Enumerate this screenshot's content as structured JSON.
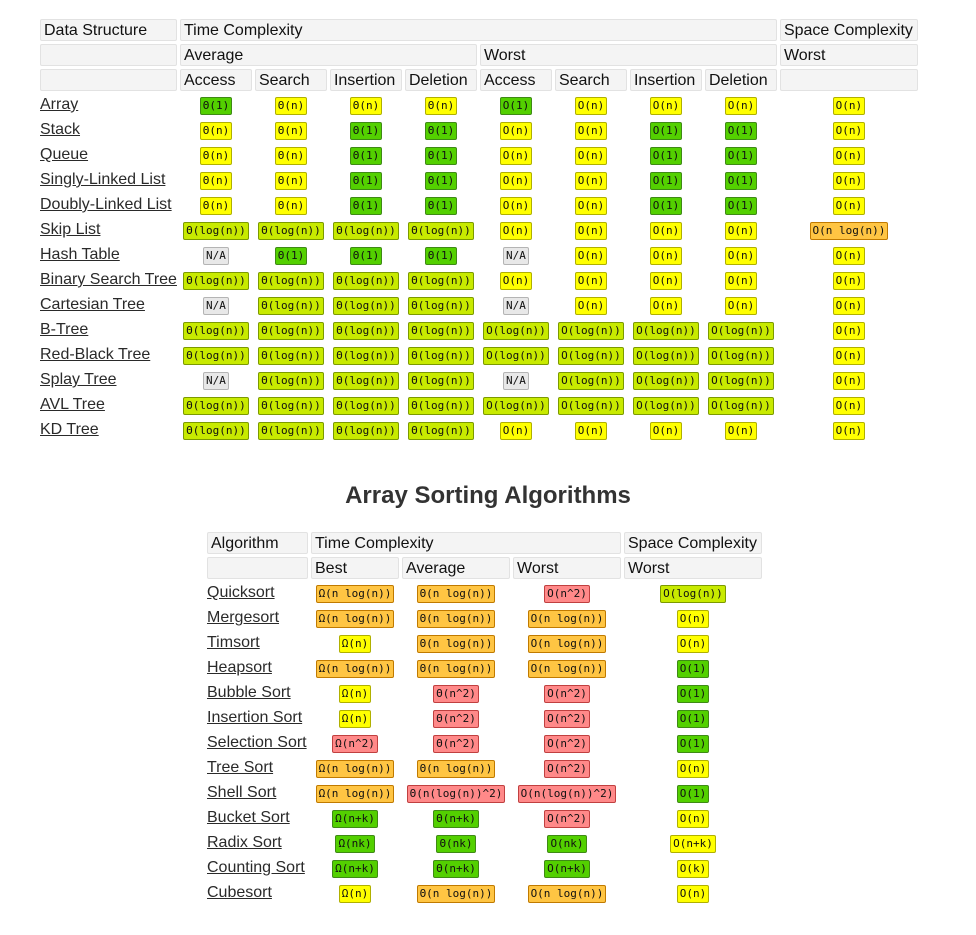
{
  "ds": {
    "headers": {
      "data_structure": "Data Structure",
      "time_complexity": "Time Complexity",
      "space_complexity": "Space Complexity",
      "average": "Average",
      "worst": "Worst",
      "space_worst": "Worst",
      "access": "Access",
      "search": "Search",
      "insertion": "Insertion",
      "deletion": "Deletion"
    },
    "rows": [
      {
        "name": "Array",
        "cells": [
          [
            "Θ(1)",
            "g"
          ],
          [
            "Θ(n)",
            "y"
          ],
          [
            "Θ(n)",
            "y"
          ],
          [
            "Θ(n)",
            "y"
          ],
          [
            "O(1)",
            "g"
          ],
          [
            "O(n)",
            "y"
          ],
          [
            "O(n)",
            "y"
          ],
          [
            "O(n)",
            "y"
          ],
          [
            "O(n)",
            "y"
          ]
        ]
      },
      {
        "name": "Stack",
        "cells": [
          [
            "Θ(n)",
            "y"
          ],
          [
            "Θ(n)",
            "y"
          ],
          [
            "Θ(1)",
            "g"
          ],
          [
            "Θ(1)",
            "g"
          ],
          [
            "O(n)",
            "y"
          ],
          [
            "O(n)",
            "y"
          ],
          [
            "O(1)",
            "g"
          ],
          [
            "O(1)",
            "g"
          ],
          [
            "O(n)",
            "y"
          ]
        ]
      },
      {
        "name": "Queue",
        "cells": [
          [
            "Θ(n)",
            "y"
          ],
          [
            "Θ(n)",
            "y"
          ],
          [
            "Θ(1)",
            "g"
          ],
          [
            "Θ(1)",
            "g"
          ],
          [
            "O(n)",
            "y"
          ],
          [
            "O(n)",
            "y"
          ],
          [
            "O(1)",
            "g"
          ],
          [
            "O(1)",
            "g"
          ],
          [
            "O(n)",
            "y"
          ]
        ]
      },
      {
        "name": "Singly-Linked List",
        "cells": [
          [
            "Θ(n)",
            "y"
          ],
          [
            "Θ(n)",
            "y"
          ],
          [
            "Θ(1)",
            "g"
          ],
          [
            "Θ(1)",
            "g"
          ],
          [
            "O(n)",
            "y"
          ],
          [
            "O(n)",
            "y"
          ],
          [
            "O(1)",
            "g"
          ],
          [
            "O(1)",
            "g"
          ],
          [
            "O(n)",
            "y"
          ]
        ]
      },
      {
        "name": "Doubly-Linked List",
        "cells": [
          [
            "Θ(n)",
            "y"
          ],
          [
            "Θ(n)",
            "y"
          ],
          [
            "Θ(1)",
            "g"
          ],
          [
            "Θ(1)",
            "g"
          ],
          [
            "O(n)",
            "y"
          ],
          [
            "O(n)",
            "y"
          ],
          [
            "O(1)",
            "g"
          ],
          [
            "O(1)",
            "g"
          ],
          [
            "O(n)",
            "y"
          ]
        ]
      },
      {
        "name": "Skip List",
        "cells": [
          [
            "Θ(log(n))",
            "l"
          ],
          [
            "Θ(log(n))",
            "l"
          ],
          [
            "Θ(log(n))",
            "l"
          ],
          [
            "Θ(log(n))",
            "l"
          ],
          [
            "O(n)",
            "y"
          ],
          [
            "O(n)",
            "y"
          ],
          [
            "O(n)",
            "y"
          ],
          [
            "O(n)",
            "y"
          ],
          [
            "O(n log(n))",
            "o"
          ]
        ]
      },
      {
        "name": "Hash Table",
        "cells": [
          [
            "N/A",
            "x"
          ],
          [
            "Θ(1)",
            "g"
          ],
          [
            "Θ(1)",
            "g"
          ],
          [
            "Θ(1)",
            "g"
          ],
          [
            "N/A",
            "x"
          ],
          [
            "O(n)",
            "y"
          ],
          [
            "O(n)",
            "y"
          ],
          [
            "O(n)",
            "y"
          ],
          [
            "O(n)",
            "y"
          ]
        ]
      },
      {
        "name": "Binary Search Tree",
        "cells": [
          [
            "Θ(log(n))",
            "l"
          ],
          [
            "Θ(log(n))",
            "l"
          ],
          [
            "Θ(log(n))",
            "l"
          ],
          [
            "Θ(log(n))",
            "l"
          ],
          [
            "O(n)",
            "y"
          ],
          [
            "O(n)",
            "y"
          ],
          [
            "O(n)",
            "y"
          ],
          [
            "O(n)",
            "y"
          ],
          [
            "O(n)",
            "y"
          ]
        ]
      },
      {
        "name": "Cartesian Tree",
        "cells": [
          [
            "N/A",
            "x"
          ],
          [
            "Θ(log(n))",
            "l"
          ],
          [
            "Θ(log(n))",
            "l"
          ],
          [
            "Θ(log(n))",
            "l"
          ],
          [
            "N/A",
            "x"
          ],
          [
            "O(n)",
            "y"
          ],
          [
            "O(n)",
            "y"
          ],
          [
            "O(n)",
            "y"
          ],
          [
            "O(n)",
            "y"
          ]
        ]
      },
      {
        "name": "B-Tree",
        "cells": [
          [
            "Θ(log(n))",
            "l"
          ],
          [
            "Θ(log(n))",
            "l"
          ],
          [
            "Θ(log(n))",
            "l"
          ],
          [
            "Θ(log(n))",
            "l"
          ],
          [
            "O(log(n))",
            "l"
          ],
          [
            "O(log(n))",
            "l"
          ],
          [
            "O(log(n))",
            "l"
          ],
          [
            "O(log(n))",
            "l"
          ],
          [
            "O(n)",
            "y"
          ]
        ]
      },
      {
        "name": "Red-Black Tree",
        "cells": [
          [
            "Θ(log(n))",
            "l"
          ],
          [
            "Θ(log(n))",
            "l"
          ],
          [
            "Θ(log(n))",
            "l"
          ],
          [
            "Θ(log(n))",
            "l"
          ],
          [
            "O(log(n))",
            "l"
          ],
          [
            "O(log(n))",
            "l"
          ],
          [
            "O(log(n))",
            "l"
          ],
          [
            "O(log(n))",
            "l"
          ],
          [
            "O(n)",
            "y"
          ]
        ]
      },
      {
        "name": "Splay Tree",
        "cells": [
          [
            "N/A",
            "x"
          ],
          [
            "Θ(log(n))",
            "l"
          ],
          [
            "Θ(log(n))",
            "l"
          ],
          [
            "Θ(log(n))",
            "l"
          ],
          [
            "N/A",
            "x"
          ],
          [
            "O(log(n))",
            "l"
          ],
          [
            "O(log(n))",
            "l"
          ],
          [
            "O(log(n))",
            "l"
          ],
          [
            "O(n)",
            "y"
          ]
        ]
      },
      {
        "name": "AVL Tree",
        "cells": [
          [
            "Θ(log(n))",
            "l"
          ],
          [
            "Θ(log(n))",
            "l"
          ],
          [
            "Θ(log(n))",
            "l"
          ],
          [
            "Θ(log(n))",
            "l"
          ],
          [
            "O(log(n))",
            "l"
          ],
          [
            "O(log(n))",
            "l"
          ],
          [
            "O(log(n))",
            "l"
          ],
          [
            "O(log(n))",
            "l"
          ],
          [
            "O(n)",
            "y"
          ]
        ]
      },
      {
        "name": "KD Tree",
        "cells": [
          [
            "Θ(log(n))",
            "l"
          ],
          [
            "Θ(log(n))",
            "l"
          ],
          [
            "Θ(log(n))",
            "l"
          ],
          [
            "Θ(log(n))",
            "l"
          ],
          [
            "O(n)",
            "y"
          ],
          [
            "O(n)",
            "y"
          ],
          [
            "O(n)",
            "y"
          ],
          [
            "O(n)",
            "y"
          ],
          [
            "O(n)",
            "y"
          ]
        ]
      }
    ]
  },
  "sorting": {
    "title": "Array Sorting Algorithms",
    "headers": {
      "algorithm": "Algorithm",
      "time_complexity": "Time Complexity",
      "space_complexity": "Space Complexity",
      "best": "Best",
      "average": "Average",
      "worst": "Worst",
      "space_worst": "Worst"
    },
    "rows": [
      {
        "name": "Quicksort",
        "cells": [
          [
            "Ω(n log(n))",
            "o"
          ],
          [
            "Θ(n log(n))",
            "o"
          ],
          [
            "O(n^2)",
            "r"
          ],
          [
            "O(log(n))",
            "l"
          ]
        ]
      },
      {
        "name": "Mergesort",
        "cells": [
          [
            "Ω(n log(n))",
            "o"
          ],
          [
            "Θ(n log(n))",
            "o"
          ],
          [
            "O(n log(n))",
            "o"
          ],
          [
            "O(n)",
            "y"
          ]
        ]
      },
      {
        "name": "Timsort",
        "cells": [
          [
            "Ω(n)",
            "y"
          ],
          [
            "Θ(n log(n))",
            "o"
          ],
          [
            "O(n log(n))",
            "o"
          ],
          [
            "O(n)",
            "y"
          ]
        ]
      },
      {
        "name": "Heapsort",
        "cells": [
          [
            "Ω(n log(n))",
            "o"
          ],
          [
            "Θ(n log(n))",
            "o"
          ],
          [
            "O(n log(n))",
            "o"
          ],
          [
            "O(1)",
            "g"
          ]
        ]
      },
      {
        "name": "Bubble Sort",
        "cells": [
          [
            "Ω(n)",
            "y"
          ],
          [
            "Θ(n^2)",
            "r"
          ],
          [
            "O(n^2)",
            "r"
          ],
          [
            "O(1)",
            "g"
          ]
        ]
      },
      {
        "name": "Insertion Sort",
        "cells": [
          [
            "Ω(n)",
            "y"
          ],
          [
            "Θ(n^2)",
            "r"
          ],
          [
            "O(n^2)",
            "r"
          ],
          [
            "O(1)",
            "g"
          ]
        ]
      },
      {
        "name": "Selection Sort",
        "cells": [
          [
            "Ω(n^2)",
            "r"
          ],
          [
            "Θ(n^2)",
            "r"
          ],
          [
            "O(n^2)",
            "r"
          ],
          [
            "O(1)",
            "g"
          ]
        ]
      },
      {
        "name": "Tree Sort",
        "cells": [
          [
            "Ω(n log(n))",
            "o"
          ],
          [
            "Θ(n log(n))",
            "o"
          ],
          [
            "O(n^2)",
            "r"
          ],
          [
            "O(n)",
            "y"
          ]
        ]
      },
      {
        "name": "Shell Sort",
        "cells": [
          [
            "Ω(n log(n))",
            "o"
          ],
          [
            "Θ(n(log(n))^2)",
            "r"
          ],
          [
            "O(n(log(n))^2)",
            "r"
          ],
          [
            "O(1)",
            "g"
          ]
        ]
      },
      {
        "name": "Bucket Sort",
        "cells": [
          [
            "Ω(n+k)",
            "g"
          ],
          [
            "Θ(n+k)",
            "g"
          ],
          [
            "O(n^2)",
            "r"
          ],
          [
            "O(n)",
            "y"
          ]
        ]
      },
      {
        "name": "Radix Sort",
        "cells": [
          [
            "Ω(nk)",
            "g"
          ],
          [
            "Θ(nk)",
            "g"
          ],
          [
            "O(nk)",
            "g"
          ],
          [
            "O(n+k)",
            "y"
          ]
        ]
      },
      {
        "name": "Counting Sort",
        "cells": [
          [
            "Ω(n+k)",
            "g"
          ],
          [
            "Θ(n+k)",
            "g"
          ],
          [
            "O(n+k)",
            "g"
          ],
          [
            "O(k)",
            "y"
          ]
        ]
      },
      {
        "name": "Cubesort",
        "cells": [
          [
            "Ω(n)",
            "y"
          ],
          [
            "Θ(n log(n))",
            "o"
          ],
          [
            "O(n log(n))",
            "o"
          ],
          [
            "O(n)",
            "y"
          ]
        ]
      }
    ]
  },
  "colors": {
    "g": "#53d000",
    "l": "#c8ea00",
    "y": "#ffff00",
    "o": "#ffc543",
    "r": "#ff8989",
    "x": "#e8e8e8"
  }
}
